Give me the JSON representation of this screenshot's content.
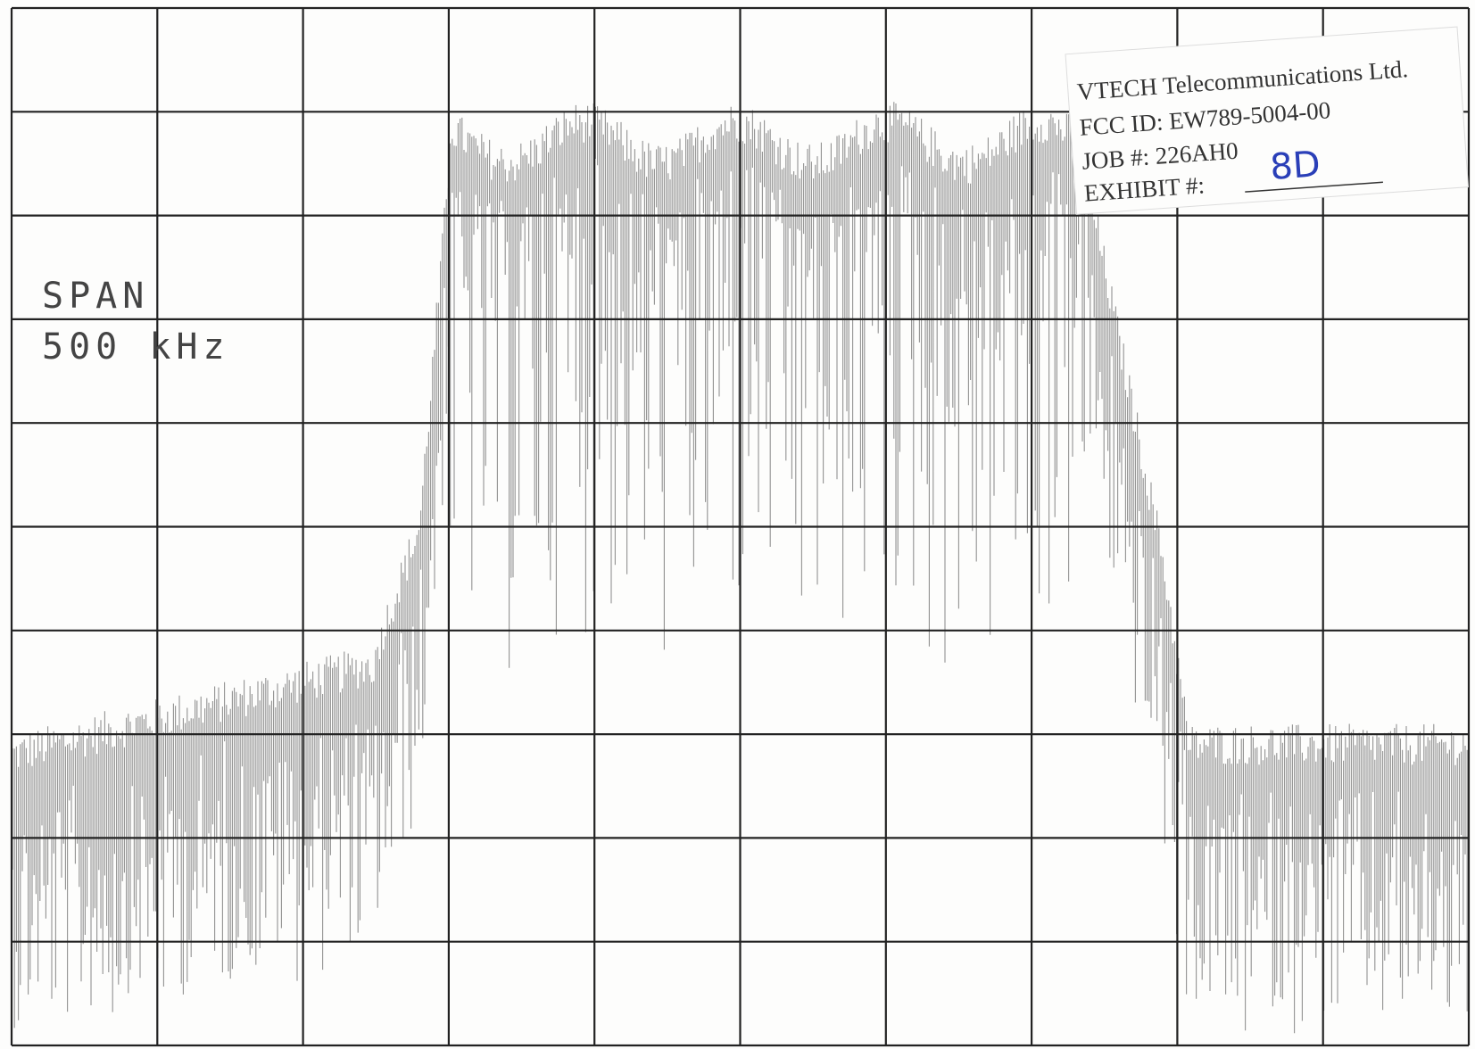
{
  "annotations": {
    "span_label": "SPAN",
    "span_value": "500 kHz"
  },
  "stamp": {
    "company": "VTECH Telecommunications Ltd.",
    "fcc_id": "FCC ID: EW789-5004-00",
    "job": "JOB #: 226AH0",
    "exhibit": "EXHIBIT #:",
    "exhibit_value": "8D"
  }
}
